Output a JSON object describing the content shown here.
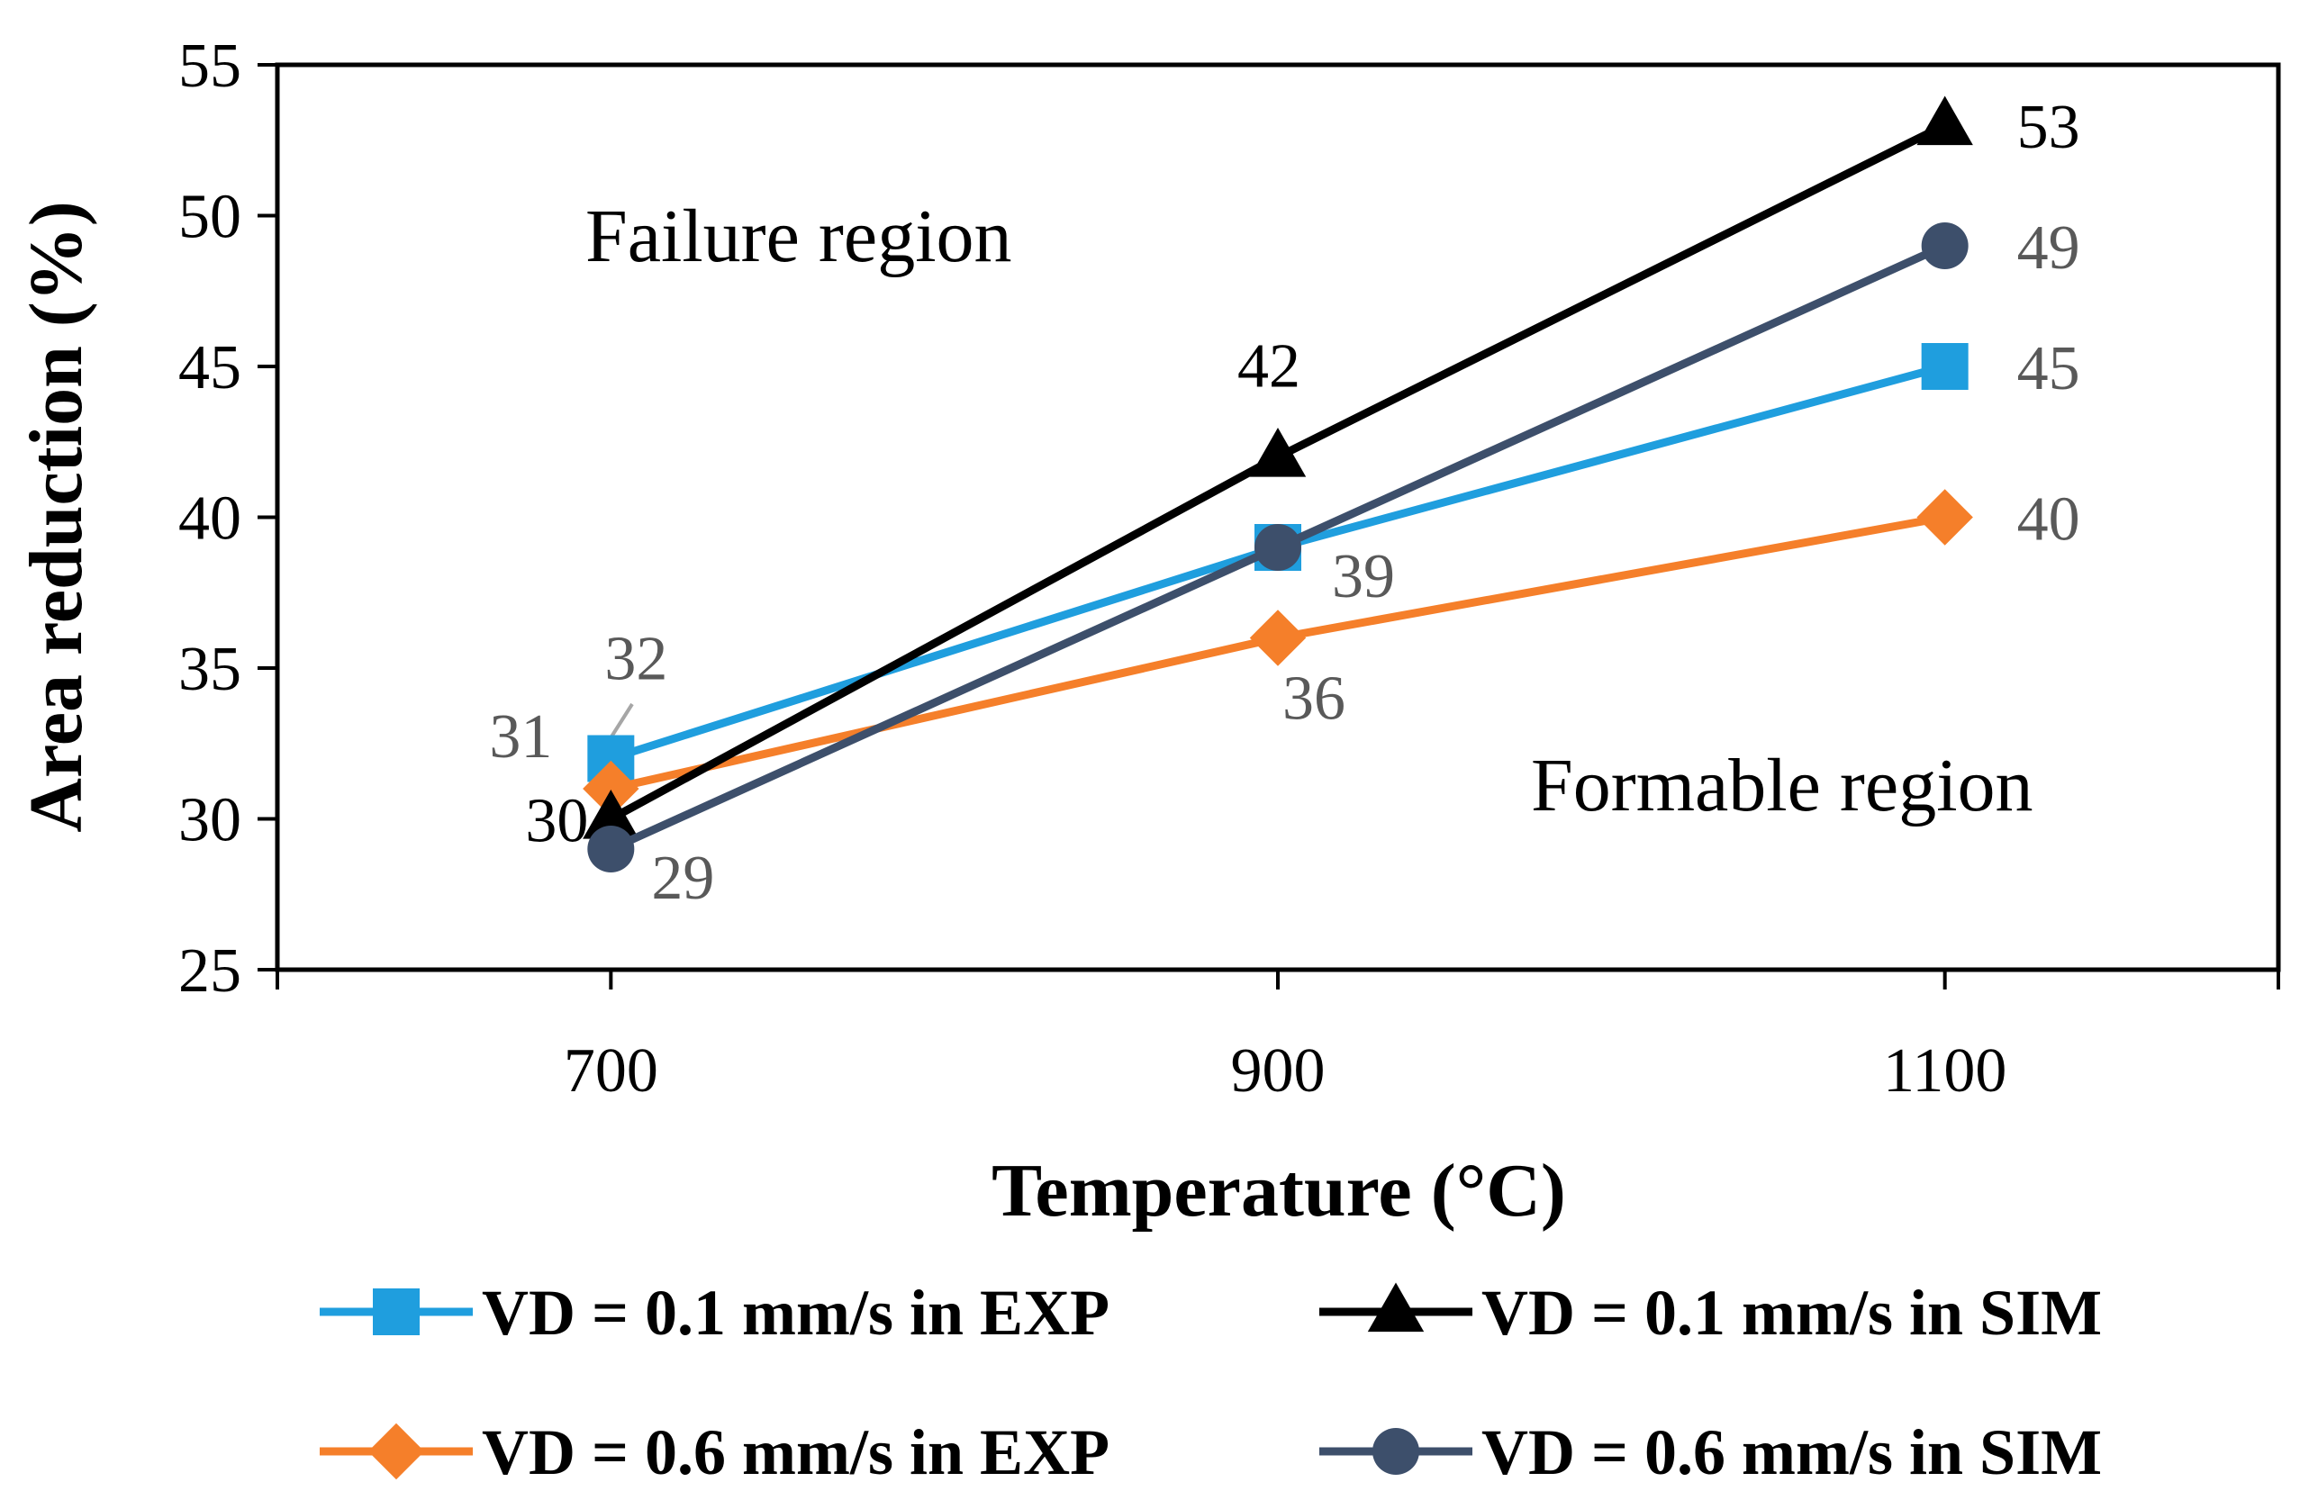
{
  "chart_data": {
    "type": "line",
    "title": "",
    "xlabel": "Temperature (°C)",
    "ylabel": "Area reduction (%)",
    "x": [
      700,
      900,
      1100
    ],
    "x_tick_labels": [
      "700",
      "900",
      "1100"
    ],
    "xlim": [
      600,
      1200
    ],
    "ylim": [
      25,
      55
    ],
    "y_ticks": [
      25,
      30,
      35,
      40,
      45,
      50,
      55
    ],
    "y_tick_labels": [
      "25",
      "30",
      "35",
      "40",
      "45",
      "50",
      "55"
    ],
    "grid": false,
    "legend_position": "bottom",
    "series": [
      {
        "key": "exp01",
        "name": "VD = 0.1 mm/s in EXP",
        "values": [
          32,
          39,
          45
        ],
        "color": "#1f9ede",
        "marker": "square",
        "labels": [
          "32",
          "39",
          "45"
        ],
        "label_color": "#595959"
      },
      {
        "key": "sim01",
        "name": "VD = 0.1 mm/s in SIM",
        "values": [
          30,
          42,
          53
        ],
        "color": "#000000",
        "marker": "triangle",
        "labels": [
          "30",
          "42",
          "53"
        ],
        "label_color": "#000000"
      },
      {
        "key": "exp06",
        "name": "VD = 0.6 mm/s in EXP",
        "values": [
          31,
          36,
          40
        ],
        "color": "#f57f2a",
        "marker": "diamond",
        "labels": [
          "31",
          "36",
          "40"
        ],
        "label_color": "#595959"
      },
      {
        "key": "sim06",
        "name": "VD = 0.6 mm/s in SIM",
        "values": [
          29,
          39,
          49
        ],
        "color": "#3d4f6b",
        "marker": "circle",
        "labels": [
          "29",
          "",
          "49"
        ],
        "label_color": "#595959"
      }
    ],
    "annotations": [
      {
        "key": "failure",
        "text": "Failure region"
      },
      {
        "key": "formable",
        "text": "Formable region"
      }
    ]
  }
}
